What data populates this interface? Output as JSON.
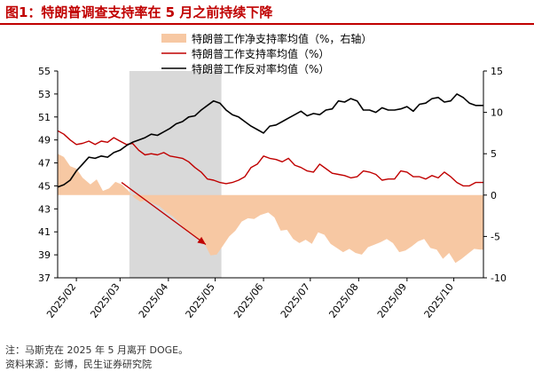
{
  "header": {
    "title": "图1：特朗普调查支持率在 5 月之前持续下降"
  },
  "footer": {
    "note": "注：马斯克在 2025 年 5 月离开 DOGE。",
    "source": "资料来源：彭博，民生证券研究院"
  },
  "colors": {
    "title": "#c00000",
    "approval": "#c00000",
    "disapproval": "#000000",
    "net": "#f7c8a3",
    "shade": "#d9d9d9",
    "arrow": "#c00000"
  },
  "chart_data": {
    "type": "line",
    "x_tick_labels": [
      "2025/02",
      "2025/03",
      "2025/04",
      "2025/05",
      "2025/06",
      "2025/07",
      "2025/08",
      "2025/09",
      "2025/10"
    ],
    "x_range": [
      "2025-01-20",
      "2025-10-20"
    ],
    "y_left": {
      "range": [
        37,
        55
      ],
      "ticks": [
        37,
        39,
        41,
        43,
        45,
        47,
        49,
        51,
        53,
        55
      ]
    },
    "y_right": {
      "range": [
        -10,
        15
      ],
      "ticks": [
        -10,
        -5,
        0,
        5,
        10,
        15
      ]
    },
    "shaded_period": [
      "2025-03-07",
      "2025-05-05"
    ],
    "annotation_arrow": {
      "from": [
        "2025-03-02",
        45.3
      ],
      "to": [
        "2025-04-25",
        39.9
      ]
    },
    "legend": {
      "placement": "top-center"
    },
    "series": [
      {
        "name": "特朗普工作净支持率均值（%，右轴）",
        "type": "area",
        "axis": "right",
        "points": [
          [
            "2025-01-20",
            5
          ],
          [
            "2025-01-24",
            4.6
          ],
          [
            "2025-01-28",
            3.5
          ],
          [
            "2025-02-01",
            3.2
          ],
          [
            "2025-02-05",
            2.1
          ],
          [
            "2025-02-10",
            1.3
          ],
          [
            "2025-02-14",
            1.9
          ],
          [
            "2025-02-18",
            0.5
          ],
          [
            "2025-02-22",
            0.8
          ],
          [
            "2025-02-26",
            1.6
          ],
          [
            "2025-03-02",
            1.3
          ],
          [
            "2025-03-06",
            0.6
          ],
          [
            "2025-03-10",
            -0.3
          ],
          [
            "2025-03-14",
            -0.8
          ],
          [
            "2025-03-18",
            -0.6
          ],
          [
            "2025-03-22",
            -1.0
          ],
          [
            "2025-03-26",
            -1.3
          ],
          [
            "2025-03-31",
            -2.1
          ],
          [
            "2025-04-04",
            -2.6
          ],
          [
            "2025-04-08",
            -3.3
          ],
          [
            "2025-04-12",
            -4.3
          ],
          [
            "2025-04-16",
            -4.6
          ],
          [
            "2025-04-20",
            -5.3
          ],
          [
            "2025-04-24",
            -5.8
          ],
          [
            "2025-04-28",
            -7.3
          ],
          [
            "2025-05-02",
            -7.2
          ],
          [
            "2025-05-06",
            -6.1
          ],
          [
            "2025-05-10",
            -5.0
          ],
          [
            "2025-05-14",
            -4.3
          ],
          [
            "2025-05-18",
            -3.2
          ],
          [
            "2025-05-22",
            -2.8
          ],
          [
            "2025-05-26",
            -2.9
          ],
          [
            "2025-05-30",
            -2.4
          ],
          [
            "2025-06-04",
            -2.1
          ],
          [
            "2025-06-08",
            -2.7
          ],
          [
            "2025-06-12",
            -4.3
          ],
          [
            "2025-06-16",
            -4.2
          ],
          [
            "2025-06-20",
            -5.3
          ],
          [
            "2025-06-24",
            -5.8
          ],
          [
            "2025-06-28",
            -5.4
          ],
          [
            "2025-07-02",
            -5.9
          ],
          [
            "2025-07-06",
            -4.5
          ],
          [
            "2025-07-10",
            -4.8
          ],
          [
            "2025-07-14",
            -5.9
          ],
          [
            "2025-07-18",
            -6.4
          ],
          [
            "2025-07-22",
            -6.9
          ],
          [
            "2025-07-26",
            -6.5
          ],
          [
            "2025-07-30",
            -7.0
          ],
          [
            "2025-08-03",
            -7.2
          ],
          [
            "2025-08-07",
            -6.3
          ],
          [
            "2025-08-11",
            -6.0
          ],
          [
            "2025-08-15",
            -5.7
          ],
          [
            "2025-08-19",
            -5.3
          ],
          [
            "2025-08-23",
            -5.8
          ],
          [
            "2025-08-27",
            -6.9
          ],
          [
            "2025-08-31",
            -6.7
          ],
          [
            "2025-09-04",
            -6.2
          ],
          [
            "2025-09-08",
            -5.6
          ],
          [
            "2025-09-12",
            -5.3
          ],
          [
            "2025-09-16",
            -6.4
          ],
          [
            "2025-09-20",
            -6.6
          ],
          [
            "2025-09-24",
            -7.7
          ],
          [
            "2025-09-28",
            -7.0
          ],
          [
            "2025-10-02",
            -8.2
          ],
          [
            "2025-10-06",
            -7.7
          ],
          [
            "2025-10-10",
            -7.1
          ],
          [
            "2025-10-14",
            -6.5
          ],
          [
            "2025-10-18",
            -6.6
          ],
          [
            "2025-10-20",
            -6.6
          ]
        ]
      },
      {
        "name": "特朗普工作支持率均值（%）",
        "type": "line",
        "axis": "left",
        "points": [
          [
            "2025-01-20",
            49.8
          ],
          [
            "2025-01-24",
            49.5
          ],
          [
            "2025-01-28",
            49.0
          ],
          [
            "2025-02-01",
            48.6
          ],
          [
            "2025-02-05",
            48.7
          ],
          [
            "2025-02-09",
            48.9
          ],
          [
            "2025-02-13",
            48.6
          ],
          [
            "2025-02-17",
            48.9
          ],
          [
            "2025-02-21",
            48.8
          ],
          [
            "2025-02-25",
            49.2
          ],
          [
            "2025-03-01",
            48.9
          ],
          [
            "2025-03-05",
            48.6
          ],
          [
            "2025-03-09",
            48.7
          ],
          [
            "2025-03-13",
            48.1
          ],
          [
            "2025-03-17",
            47.7
          ],
          [
            "2025-03-21",
            47.8
          ],
          [
            "2025-03-25",
            47.7
          ],
          [
            "2025-03-29",
            47.9
          ],
          [
            "2025-04-02",
            47.6
          ],
          [
            "2025-04-06",
            47.5
          ],
          [
            "2025-04-10",
            47.4
          ],
          [
            "2025-04-14",
            47.1
          ],
          [
            "2025-04-18",
            46.6
          ],
          [
            "2025-04-22",
            46.2
          ],
          [
            "2025-04-26",
            45.6
          ],
          [
            "2025-04-30",
            45.5
          ],
          [
            "2025-05-04",
            45.3
          ],
          [
            "2025-05-08",
            45.2
          ],
          [
            "2025-05-12",
            45.3
          ],
          [
            "2025-05-16",
            45.5
          ],
          [
            "2025-05-20",
            45.8
          ],
          [
            "2025-05-24",
            46.6
          ],
          [
            "2025-05-28",
            46.9
          ],
          [
            "2025-06-01",
            47.6
          ],
          [
            "2025-06-05",
            47.4
          ],
          [
            "2025-06-09",
            47.3
          ],
          [
            "2025-06-13",
            47.1
          ],
          [
            "2025-06-17",
            47.4
          ],
          [
            "2025-06-21",
            46.8
          ],
          [
            "2025-06-25",
            46.6
          ],
          [
            "2025-06-29",
            46.3
          ],
          [
            "2025-07-03",
            46.2
          ],
          [
            "2025-07-07",
            46.9
          ],
          [
            "2025-07-11",
            46.5
          ],
          [
            "2025-07-15",
            46.1
          ],
          [
            "2025-07-19",
            46.0
          ],
          [
            "2025-07-23",
            45.9
          ],
          [
            "2025-07-27",
            45.7
          ],
          [
            "2025-07-31",
            45.8
          ],
          [
            "2025-08-04",
            46.3
          ],
          [
            "2025-08-08",
            46.2
          ],
          [
            "2025-08-12",
            46.0
          ],
          [
            "2025-08-16",
            45.5
          ],
          [
            "2025-08-20",
            45.6
          ],
          [
            "2025-08-24",
            45.6
          ],
          [
            "2025-08-28",
            46.3
          ],
          [
            "2025-09-01",
            46.2
          ],
          [
            "2025-09-05",
            45.8
          ],
          [
            "2025-09-09",
            45.8
          ],
          [
            "2025-09-13",
            45.6
          ],
          [
            "2025-09-17",
            45.9
          ],
          [
            "2025-09-21",
            45.7
          ],
          [
            "2025-09-25",
            46.2
          ],
          [
            "2025-09-29",
            45.8
          ],
          [
            "2025-10-03",
            45.3
          ],
          [
            "2025-10-07",
            45.0
          ],
          [
            "2025-10-11",
            45.0
          ],
          [
            "2025-10-15",
            45.3
          ],
          [
            "2025-10-20",
            45.3
          ]
        ]
      },
      {
        "name": "特朗普工作反对率均值（%）",
        "type": "line",
        "axis": "left",
        "points": [
          [
            "2025-01-20",
            44.9
          ],
          [
            "2025-01-24",
            45.1
          ],
          [
            "2025-01-28",
            45.5
          ],
          [
            "2025-02-01",
            46.3
          ],
          [
            "2025-02-05",
            46.9
          ],
          [
            "2025-02-09",
            47.5
          ],
          [
            "2025-02-13",
            47.4
          ],
          [
            "2025-02-17",
            47.6
          ],
          [
            "2025-02-21",
            47.5
          ],
          [
            "2025-02-25",
            47.9
          ],
          [
            "2025-03-01",
            48.1
          ],
          [
            "2025-03-05",
            48.5
          ],
          [
            "2025-03-09",
            48.8
          ],
          [
            "2025-03-13",
            49.0
          ],
          [
            "2025-03-17",
            49.2
          ],
          [
            "2025-03-21",
            49.5
          ],
          [
            "2025-03-25",
            49.4
          ],
          [
            "2025-03-29",
            49.7
          ],
          [
            "2025-04-02",
            50.0
          ],
          [
            "2025-04-06",
            50.4
          ],
          [
            "2025-04-10",
            50.6
          ],
          [
            "2025-04-14",
            51.0
          ],
          [
            "2025-04-18",
            51.1
          ],
          [
            "2025-04-22",
            51.6
          ],
          [
            "2025-04-26",
            52.0
          ],
          [
            "2025-04-30",
            52.4
          ],
          [
            "2025-05-04",
            52.2
          ],
          [
            "2025-05-08",
            51.6
          ],
          [
            "2025-05-12",
            51.2
          ],
          [
            "2025-05-16",
            51.0
          ],
          [
            "2025-05-20",
            50.6
          ],
          [
            "2025-05-24",
            50.2
          ],
          [
            "2025-05-28",
            49.9
          ],
          [
            "2025-06-01",
            49.6
          ],
          [
            "2025-06-05",
            50.2
          ],
          [
            "2025-06-09",
            50.3
          ],
          [
            "2025-06-13",
            50.6
          ],
          [
            "2025-06-17",
            50.9
          ],
          [
            "2025-06-21",
            51.2
          ],
          [
            "2025-06-25",
            51.5
          ],
          [
            "2025-06-29",
            51.1
          ],
          [
            "2025-07-03",
            51.3
          ],
          [
            "2025-07-07",
            51.2
          ],
          [
            "2025-07-11",
            51.6
          ],
          [
            "2025-07-15",
            51.7
          ],
          [
            "2025-07-19",
            52.4
          ],
          [
            "2025-07-23",
            52.3
          ],
          [
            "2025-07-27",
            52.6
          ],
          [
            "2025-07-31",
            52.4
          ],
          [
            "2025-08-04",
            51.6
          ],
          [
            "2025-08-08",
            51.6
          ],
          [
            "2025-08-12",
            51.4
          ],
          [
            "2025-08-16",
            51.8
          ],
          [
            "2025-08-20",
            51.6
          ],
          [
            "2025-08-24",
            51.6
          ],
          [
            "2025-08-28",
            51.7
          ],
          [
            "2025-09-01",
            51.9
          ],
          [
            "2025-09-05",
            51.5
          ],
          [
            "2025-09-09",
            52.1
          ],
          [
            "2025-09-13",
            52.2
          ],
          [
            "2025-09-17",
            52.6
          ],
          [
            "2025-09-21",
            52.7
          ],
          [
            "2025-09-25",
            52.3
          ],
          [
            "2025-09-29",
            52.4
          ],
          [
            "2025-10-03",
            53.0
          ],
          [
            "2025-10-07",
            52.7
          ],
          [
            "2025-10-11",
            52.2
          ],
          [
            "2025-10-15",
            52.0
          ],
          [
            "2025-10-20",
            52.0
          ]
        ]
      }
    ]
  }
}
